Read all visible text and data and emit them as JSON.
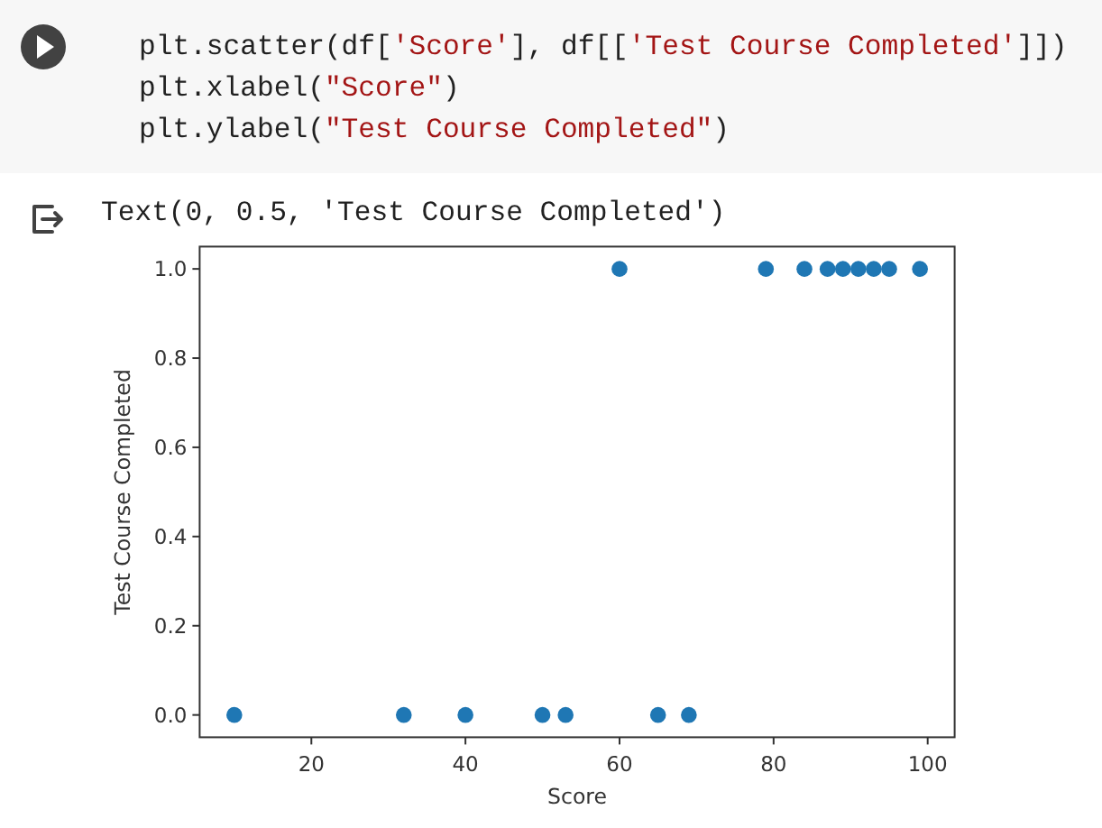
{
  "chart_data": {
    "type": "scatter",
    "xlabel": "Score",
    "ylabel": "Test Course Completed",
    "annotations": [
      "plt.scatter(df['Score'], df[['Test Course Completed']])",
      "plt.xlabel(\"Score\")",
      "plt.ylabel(\"Test Course Completed\")",
      "Text(0, 0.5, 'Test Course Completed')"
    ],
    "x": [
      10,
      32,
      40,
      50,
      53,
      65,
      69,
      60,
      79,
      84,
      87,
      89,
      91,
      93,
      95,
      99
    ],
    "values": [
      0,
      0,
      0,
      0,
      0,
      0,
      0,
      1,
      1,
      1,
      1,
      1,
      1,
      1,
      1,
      1
    ],
    "color": "#1f77b4",
    "marker": "circle",
    "xlim": [
      5.5,
      103.5
    ],
    "ylim": [
      -0.05,
      1.05
    ],
    "xticks": [
      20,
      40,
      60,
      80,
      100
    ],
    "yticks": [
      {
        "value": 0,
        "label": "0.0"
      },
      {
        "value": 0.2,
        "label": "0.2"
      },
      {
        "value": 0.4,
        "label": "0.4"
      },
      {
        "value": 0.6,
        "label": "0.6"
      },
      {
        "value": 0.8,
        "label": "0.8"
      },
      {
        "value": 1,
        "label": "1.0"
      }
    ]
  }
}
